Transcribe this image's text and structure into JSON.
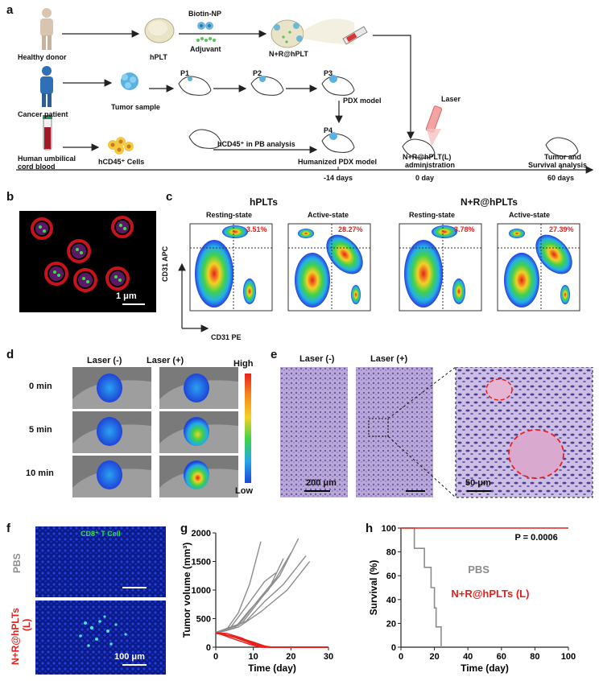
{
  "panel_a": {
    "letter": "a",
    "healthy_donor": "Healthy donor",
    "hplt": "hPLT",
    "biotin_np": "Biotin-NP",
    "adjuvant": "Adjuvant",
    "nr_hplt": "N+R@hPLT",
    "cancer_patient": "Cancer patient",
    "tumor_sample": "Tumor sample",
    "p1": "P1",
    "p2": "P2",
    "p3": "P3",
    "p4": "P4",
    "pdx_model": "PDX model",
    "laser": "Laser",
    "cord_blood_1": "Human umbilical",
    "cord_blood_2": "cord blood",
    "hcd45_cells": "hCD45⁺ Cells",
    "hcd45_pb": "hCD45⁺ in PB analysis",
    "humanized_pdx": "Humanized PDX model",
    "admin_1": "N+R@hPLT(L)",
    "admin_2": "administration",
    "tumor_survival_1": "Tumor and",
    "tumor_survival_2": "Survival analysis",
    "t_minus14": "-14 days",
    "t_0": "0 day",
    "t_60": "60 days"
  },
  "panel_b": {
    "letter": "b",
    "scale": "1 μm"
  },
  "panel_c": {
    "letter": "c",
    "group1": "hPLTs",
    "group2": "N+R@hPLTs",
    "resting": "Resting-state",
    "active": "Active-state",
    "p1": "3.51%",
    "p2": "28.27%",
    "p3": "3.78%",
    "p4": "27.39%",
    "yaxis": "CD31 APC",
    "xaxis": "CD31 PE"
  },
  "panel_d": {
    "letter": "d",
    "laser_neg": "Laser (-)",
    "laser_pos": "Laser (+)",
    "t0": "0 min",
    "t5": "5 min",
    "t10": "10 min",
    "high": "High",
    "low": "Low"
  },
  "panel_e": {
    "letter": "e",
    "laser_neg": "Laser (-)",
    "laser_pos": "Laser (+)",
    "scale1": "200 μm",
    "scale2": "50 μm"
  },
  "panel_f": {
    "letter": "f",
    "cd8": "CD8⁺ T Cell",
    "pbs": "PBS",
    "nr": "N+R@hPLTs",
    "nr2": "(L)",
    "scale": "100 μm"
  },
  "panel_g": {
    "letter": "g",
    "chart_data": {
      "type": "line",
      "xlabel": "Time (day)",
      "ylabel": "Tumor volume (mm³)",
      "xlim": [
        0,
        30
      ],
      "ylim": [
        0,
        2000
      ],
      "xticks": [
        0,
        10,
        20,
        30
      ],
      "yticks": [
        0,
        500,
        1000,
        1500,
        2000
      ],
      "gray_series": [
        [
          [
            0,
            250
          ],
          [
            3,
            320
          ],
          [
            6,
            600
          ],
          [
            9,
            1100
          ],
          [
            12,
            1850
          ]
        ],
        [
          [
            0,
            260
          ],
          [
            4,
            350
          ],
          [
            8,
            700
          ],
          [
            13,
            1150
          ],
          [
            16,
            1300
          ]
        ],
        [
          [
            0,
            240
          ],
          [
            5,
            330
          ],
          [
            9,
            650
          ],
          [
            14,
            1000
          ],
          [
            18,
            1550
          ]
        ],
        [
          [
            0,
            250
          ],
          [
            6,
            380
          ],
          [
            11,
            800
          ],
          [
            16,
            1200
          ],
          [
            20,
            1650
          ]
        ],
        [
          [
            0,
            245
          ],
          [
            7,
            420
          ],
          [
            12,
            850
          ],
          [
            17,
            1250
          ],
          [
            22,
            1900
          ]
        ],
        [
          [
            0,
            255
          ],
          [
            8,
            450
          ],
          [
            13,
            800
          ],
          [
            18,
            1100
          ],
          [
            24,
            1600
          ]
        ],
        [
          [
            0,
            250
          ],
          [
            6,
            350
          ],
          [
            12,
            620
          ],
          [
            19,
            1000
          ],
          [
            25,
            1500
          ]
        ]
      ],
      "red_series": [
        [
          [
            0,
            250
          ],
          [
            2,
            230
          ],
          [
            5,
            180
          ],
          [
            8,
            120
          ],
          [
            12,
            30
          ],
          [
            15,
            0
          ],
          [
            30,
            0
          ]
        ],
        [
          [
            0,
            260
          ],
          [
            3,
            210
          ],
          [
            6,
            150
          ],
          [
            9,
            80
          ],
          [
            13,
            10
          ],
          [
            16,
            0
          ],
          [
            30,
            0
          ]
        ],
        [
          [
            0,
            240
          ],
          [
            2,
            220
          ],
          [
            6,
            170
          ],
          [
            10,
            90
          ],
          [
            14,
            0
          ],
          [
            30,
            0
          ]
        ],
        [
          [
            0,
            250
          ],
          [
            3,
            240
          ],
          [
            7,
            160
          ],
          [
            10,
            60
          ],
          [
            13,
            0
          ],
          [
            30,
            0
          ]
        ],
        [
          [
            0,
            255
          ],
          [
            2,
            210
          ],
          [
            5,
            140
          ],
          [
            9,
            50
          ],
          [
            12,
            0
          ],
          [
            30,
            0
          ]
        ],
        [
          [
            0,
            245
          ],
          [
            4,
            200
          ],
          [
            8,
            100
          ],
          [
            11,
            20
          ],
          [
            14,
            0
          ],
          [
            30,
            0
          ]
        ]
      ]
    }
  },
  "panel_h": {
    "letter": "h",
    "chart_data": {
      "type": "line",
      "xlabel": "Time (day)",
      "ylabel": "Survival (%)",
      "xlim": [
        0,
        100
      ],
      "ylim": [
        0,
        100
      ],
      "xticks": [
        0,
        20,
        40,
        60,
        80,
        100
      ],
      "yticks": [
        0,
        20,
        40,
        60,
        80,
        100
      ],
      "series": [
        {
          "name": "PBS",
          "steps": [
            [
              0,
              100
            ],
            [
              8,
              100
            ],
            [
              8,
              83
            ],
            [
              14,
              83
            ],
            [
              14,
              67
            ],
            [
              18,
              67
            ],
            [
              18,
              50
            ],
            [
              20,
              50
            ],
            [
              20,
              33
            ],
            [
              21,
              33
            ],
            [
              21,
              17
            ],
            [
              24,
              17
            ],
            [
              24,
              0
            ]
          ]
        },
        {
          "name": "N+R@hPLTs (L)",
          "steps": [
            [
              0,
              100
            ],
            [
              100,
              100
            ]
          ]
        }
      ],
      "annotation": "P = 0.0006"
    }
  }
}
